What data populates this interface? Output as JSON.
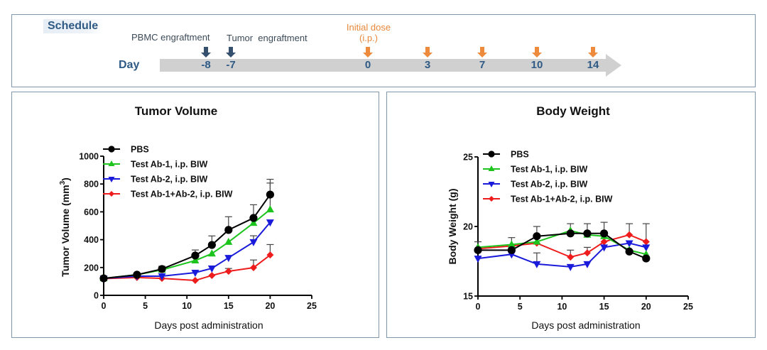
{
  "schedule": {
    "title": "Schedule",
    "day_label": "Day",
    "events": [
      {
        "label": "PBMC engraftment",
        "color": "navy"
      },
      {
        "label": "Tumor  engraftment",
        "color": "navy"
      },
      {
        "label": "Initial dose",
        "sub": "(i.p.)",
        "color": "orange"
      }
    ],
    "ticks": [
      "-8",
      "-7",
      "0",
      "3",
      "7",
      "10",
      "14"
    ],
    "colors": {
      "navy": "#34506e",
      "orange": "#ee8a3c",
      "title": "#2e5a85"
    }
  },
  "chart_data": [
    {
      "type": "line",
      "title": "Tumor Volume",
      "xlabel": "Days post administration",
      "ylabel": "Tumor Volume (mm3)",
      "ylabel_main": "Tumor Volume (mm",
      "ylabel_sup": "3",
      "ylabel_end": ")",
      "xlim": [
        0,
        25
      ],
      "ylim": [
        0,
        1000
      ],
      "xticks": [
        "0",
        "5",
        "10",
        "15",
        "20",
        "25"
      ],
      "yticks": [
        "0",
        "200",
        "400",
        "600",
        "800",
        "1000"
      ],
      "legend_position": "top-left",
      "x": [
        0,
        4,
        7,
        11,
        13,
        15,
        18,
        20
      ],
      "series": [
        {
          "name": "PBS",
          "color": "#000000",
          "marker": "circle",
          "values": [
            122,
            148,
            189,
            286,
            362,
            470,
            556,
            724
          ],
          "error": [
            0,
            5,
            20,
            40,
            65,
            95,
            95,
            110
          ]
        },
        {
          "name": "Test Ab-1, i.p. BIW",
          "color": "#1ec41e",
          "marker": "triangle-up",
          "values": [
            122,
            148,
            183,
            250,
            300,
            383,
            520,
            617
          ],
          "error": [
            0,
            0,
            0,
            0,
            0,
            0,
            0,
            190
          ]
        },
        {
          "name": "Test Ab-2, i.p. BIW",
          "color": "#1a1adb",
          "marker": "triangle-down",
          "values": [
            122,
            138,
            138,
            163,
            194,
            270,
            383,
            525
          ],
          "error": [
            0,
            0,
            0,
            0,
            0,
            0,
            45,
            0
          ]
        },
        {
          "name": "Test Ab-1+Ab-2, i.p. BIW",
          "color": "#ee1c1c",
          "marker": "diamond",
          "values": [
            120,
            128,
            122,
            107,
            143,
            173,
            199,
            290
          ],
          "error": [
            0,
            0,
            0,
            0,
            0,
            20,
            55,
            75
          ]
        }
      ]
    },
    {
      "type": "line",
      "title": "Body Weight",
      "xlabel": "Days post administration",
      "ylabel": "Body Weight (g)",
      "xlim": [
        0,
        25
      ],
      "ylim": [
        15,
        25
      ],
      "xticks": [
        "0",
        "5",
        "10",
        "15",
        "20",
        "25"
      ],
      "yticks": [
        "15",
        "20",
        "25"
      ],
      "legend_position": "top-left",
      "x": [
        0,
        4,
        7,
        11,
        13,
        15,
        18,
        20
      ],
      "series": [
        {
          "name": "PBS",
          "color": "#000000",
          "marker": "circle",
          "values": [
            18.3,
            18.3,
            19.3,
            19.5,
            19.5,
            19.5,
            18.2,
            17.7
          ],
          "error": [
            0.6,
            0,
            0.7,
            0.7,
            0.7,
            0.8,
            0,
            0
          ]
        },
        {
          "name": "Test Ab-1, i.p. BIW",
          "color": "#1ec41e",
          "marker": "triangle-up",
          "values": [
            18.5,
            18.7,
            18.9,
            19.7,
            19.4,
            19.3,
            18.3,
            18.0
          ],
          "error": [
            0,
            0.5,
            0,
            0,
            0,
            0,
            0,
            0
          ]
        },
        {
          "name": "Test Ab-2, i.p. BIW",
          "color": "#1a1adb",
          "marker": "triangle-down",
          "values": [
            17.7,
            18.0,
            17.3,
            17.1,
            17.3,
            18.5,
            18.8,
            18.5
          ],
          "error": [
            0,
            0,
            0.8,
            0,
            0,
            0,
            0,
            0
          ]
        },
        {
          "name": "Test Ab-1+Ab-2, i.p. BIW",
          "color": "#ee1c1c",
          "marker": "diamond",
          "values": [
            18.4,
            18.6,
            18.8,
            17.8,
            18.1,
            18.9,
            19.4,
            18.9
          ],
          "error": [
            0,
            0,
            0,
            0.5,
            0.4,
            0,
            0.8,
            1.3
          ]
        }
      ]
    }
  ]
}
